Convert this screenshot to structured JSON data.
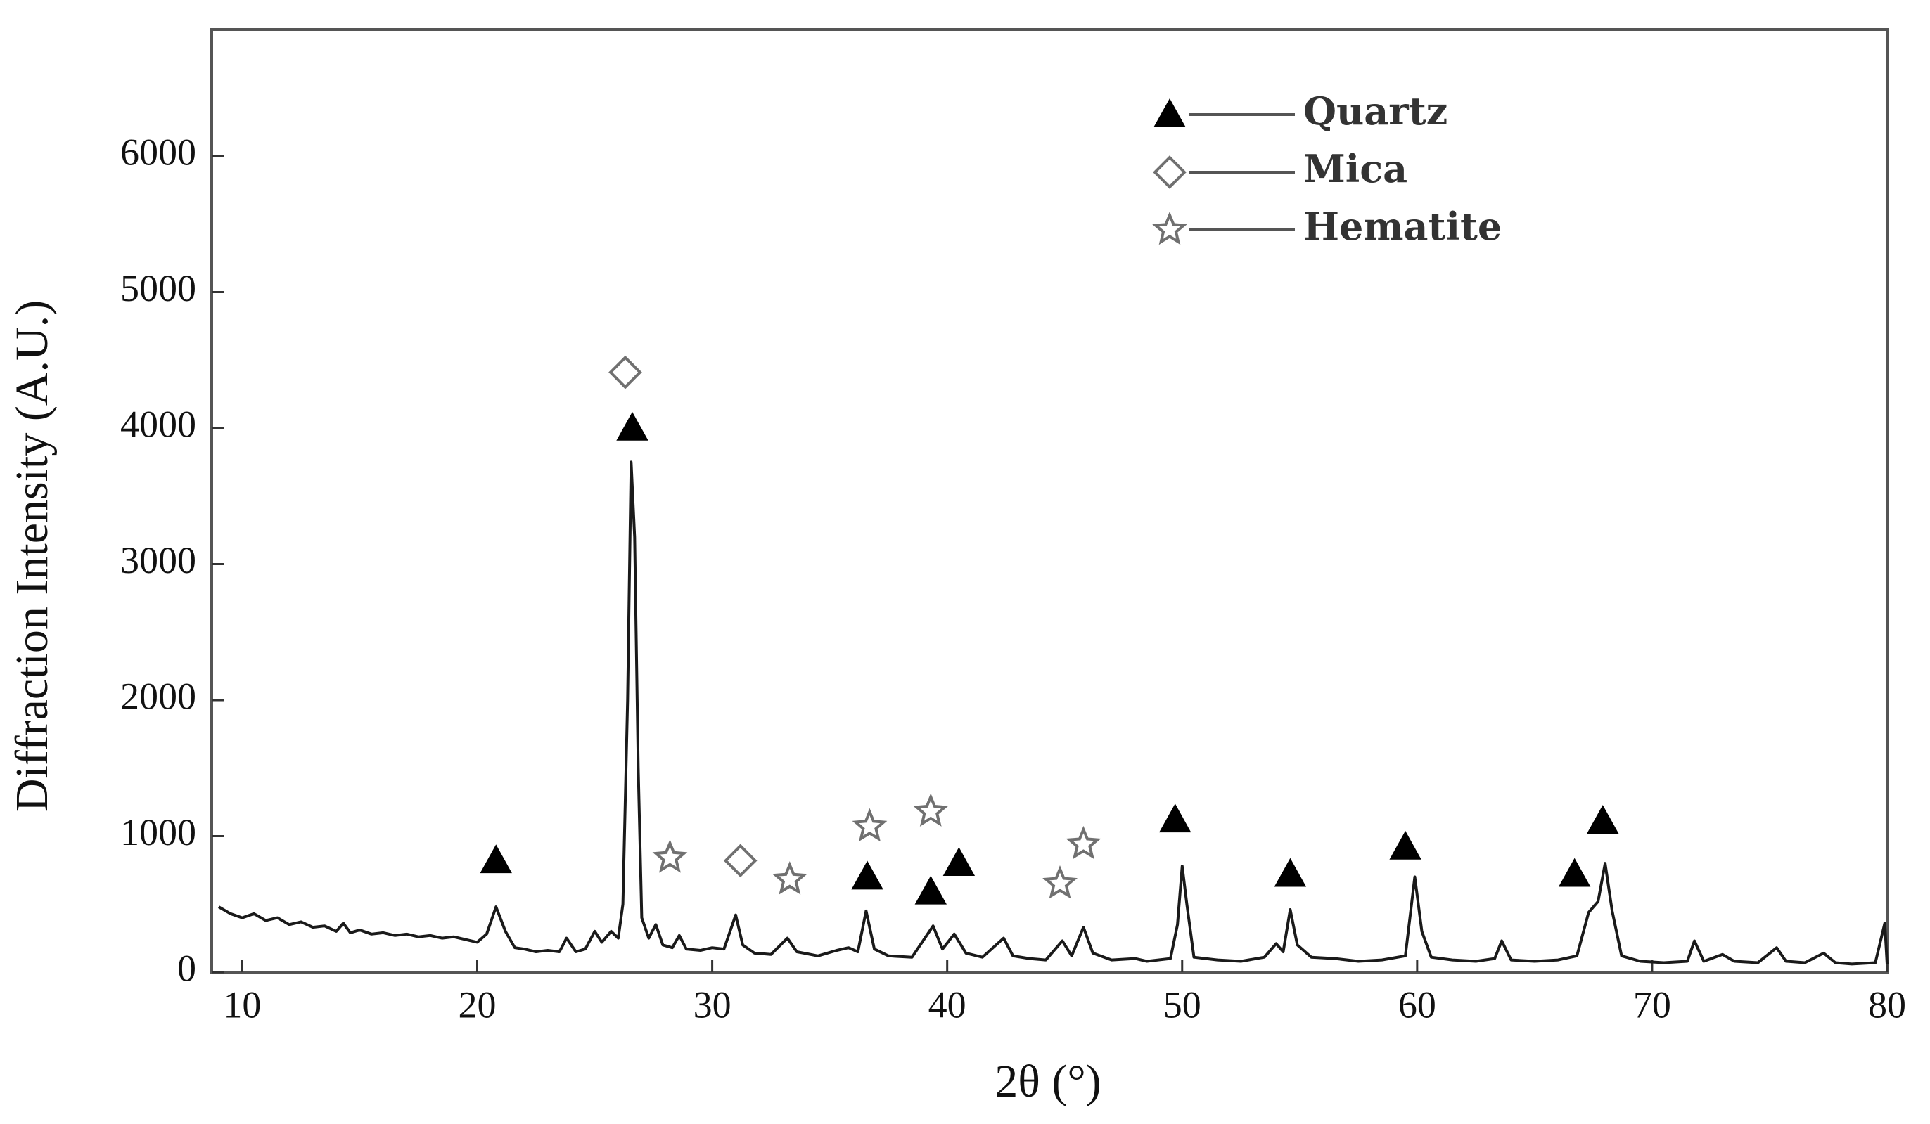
{
  "chart_data": {
    "type": "line",
    "x_label": "2θ (°)",
    "y_label": "Diffraction Intensity (A.U.)",
    "xlim": [
      8.7,
      80
    ],
    "ylim": [
      0,
      6930
    ],
    "xticks": [
      10,
      20,
      30,
      40,
      50,
      60,
      70,
      80
    ],
    "yticks": [
      0,
      1000,
      2000,
      3000,
      4000,
      5000,
      6000
    ],
    "legend": "upper right",
    "series": [
      {
        "color": "#1a1a1a",
        "x": [
          9.0,
          9.5,
          10.0,
          10.5,
          11.0,
          11.5,
          12.0,
          12.5,
          13.0,
          13.5,
          14.0,
          14.3,
          14.6,
          15.0,
          15.5,
          16.0,
          16.5,
          17.0,
          17.5,
          18.0,
          18.5,
          19.0,
          19.5,
          20.0,
          20.4,
          20.8,
          21.2,
          21.6,
          22.0,
          22.5,
          23.0,
          23.5,
          23.8,
          24.2,
          24.6,
          25.0,
          25.3,
          25.7,
          26.0,
          26.2,
          26.4,
          26.55,
          26.7,
          26.85,
          27.0,
          27.3,
          27.6,
          27.9,
          28.3,
          28.6,
          28.9,
          29.5,
          30.0,
          30.5,
          31.0,
          31.3,
          31.8,
          32.5,
          33.2,
          33.6,
          34.5,
          35.3,
          35.8,
          36.2,
          36.55,
          36.9,
          37.5,
          38.5,
          39.4,
          39.8,
          40.3,
          40.8,
          41.5,
          42.4,
          42.8,
          43.5,
          44.2,
          44.9,
          45.3,
          45.8,
          46.2,
          47.0,
          48.0,
          48.5,
          49.5,
          49.8,
          50.0,
          50.2,
          50.5,
          51.5,
          52.5,
          53.5,
          54.0,
          54.3,
          54.6,
          54.9,
          55.5,
          56.5,
          57.5,
          58.5,
          59.5,
          59.9,
          60.2,
          60.6,
          61.5,
          62.5,
          63.3,
          63.6,
          64.0,
          65.0,
          66.0,
          66.8,
          67.3,
          67.7,
          68.0,
          68.3,
          68.7,
          69.5,
          70.5,
          71.5,
          71.8,
          72.2,
          73.0,
          73.5,
          74.5,
          75.3,
          75.7,
          76.5,
          77.3,
          77.8,
          78.5,
          79.5,
          79.9,
          80.0
        ],
        "values": [
          480,
          430,
          400,
          430,
          380,
          400,
          350,
          370,
          330,
          340,
          300,
          360,
          290,
          310,
          280,
          290,
          270,
          280,
          260,
          270,
          250,
          260,
          240,
          220,
          280,
          480,
          300,
          180,
          170,
          150,
          160,
          150,
          250,
          150,
          170,
          300,
          220,
          300,
          250,
          500,
          2000,
          3750,
          3200,
          1500,
          400,
          250,
          350,
          200,
          180,
          270,
          170,
          160,
          180,
          170,
          420,
          200,
          140,
          130,
          250,
          150,
          120,
          160,
          180,
          150,
          450,
          170,
          120,
          110,
          340,
          170,
          280,
          140,
          110,
          250,
          120,
          100,
          90,
          230,
          120,
          330,
          140,
          90,
          100,
          80,
          100,
          350,
          780,
          500,
          110,
          90,
          80,
          110,
          210,
          150,
          460,
          200,
          110,
          100,
          80,
          90,
          120,
          700,
          300,
          110,
          90,
          80,
          100,
          230,
          90,
          80,
          90,
          120,
          440,
          520,
          800,
          450,
          120,
          80,
          70,
          80,
          230,
          80,
          130,
          80,
          70,
          180,
          80,
          70,
          140,
          70,
          60,
          70,
          360,
          60
        ]
      },
      {
        "name": "Quartz",
        "marker": "triangle",
        "color": "#000000",
        "x": [
          20.8,
          26.6,
          36.6,
          39.3,
          40.5,
          49.7,
          54.6,
          59.5,
          66.7,
          67.9
        ],
        "values": [
          820,
          4000,
          700,
          590,
          800,
          1120,
          720,
          920,
          720,
          1110
        ]
      },
      {
        "name": "Mica",
        "marker": "diamond",
        "color": "#707070",
        "x": [
          26.3,
          31.2
        ],
        "values": [
          4410,
          820
        ]
      },
      {
        "name": "Hematite",
        "marker": "star",
        "color": "#707070",
        "x": [
          28.2,
          33.3,
          36.7,
          39.3,
          44.8,
          45.8
        ],
        "values": [
          840,
          680,
          1070,
          1180,
          650,
          940
        ]
      }
    ]
  }
}
